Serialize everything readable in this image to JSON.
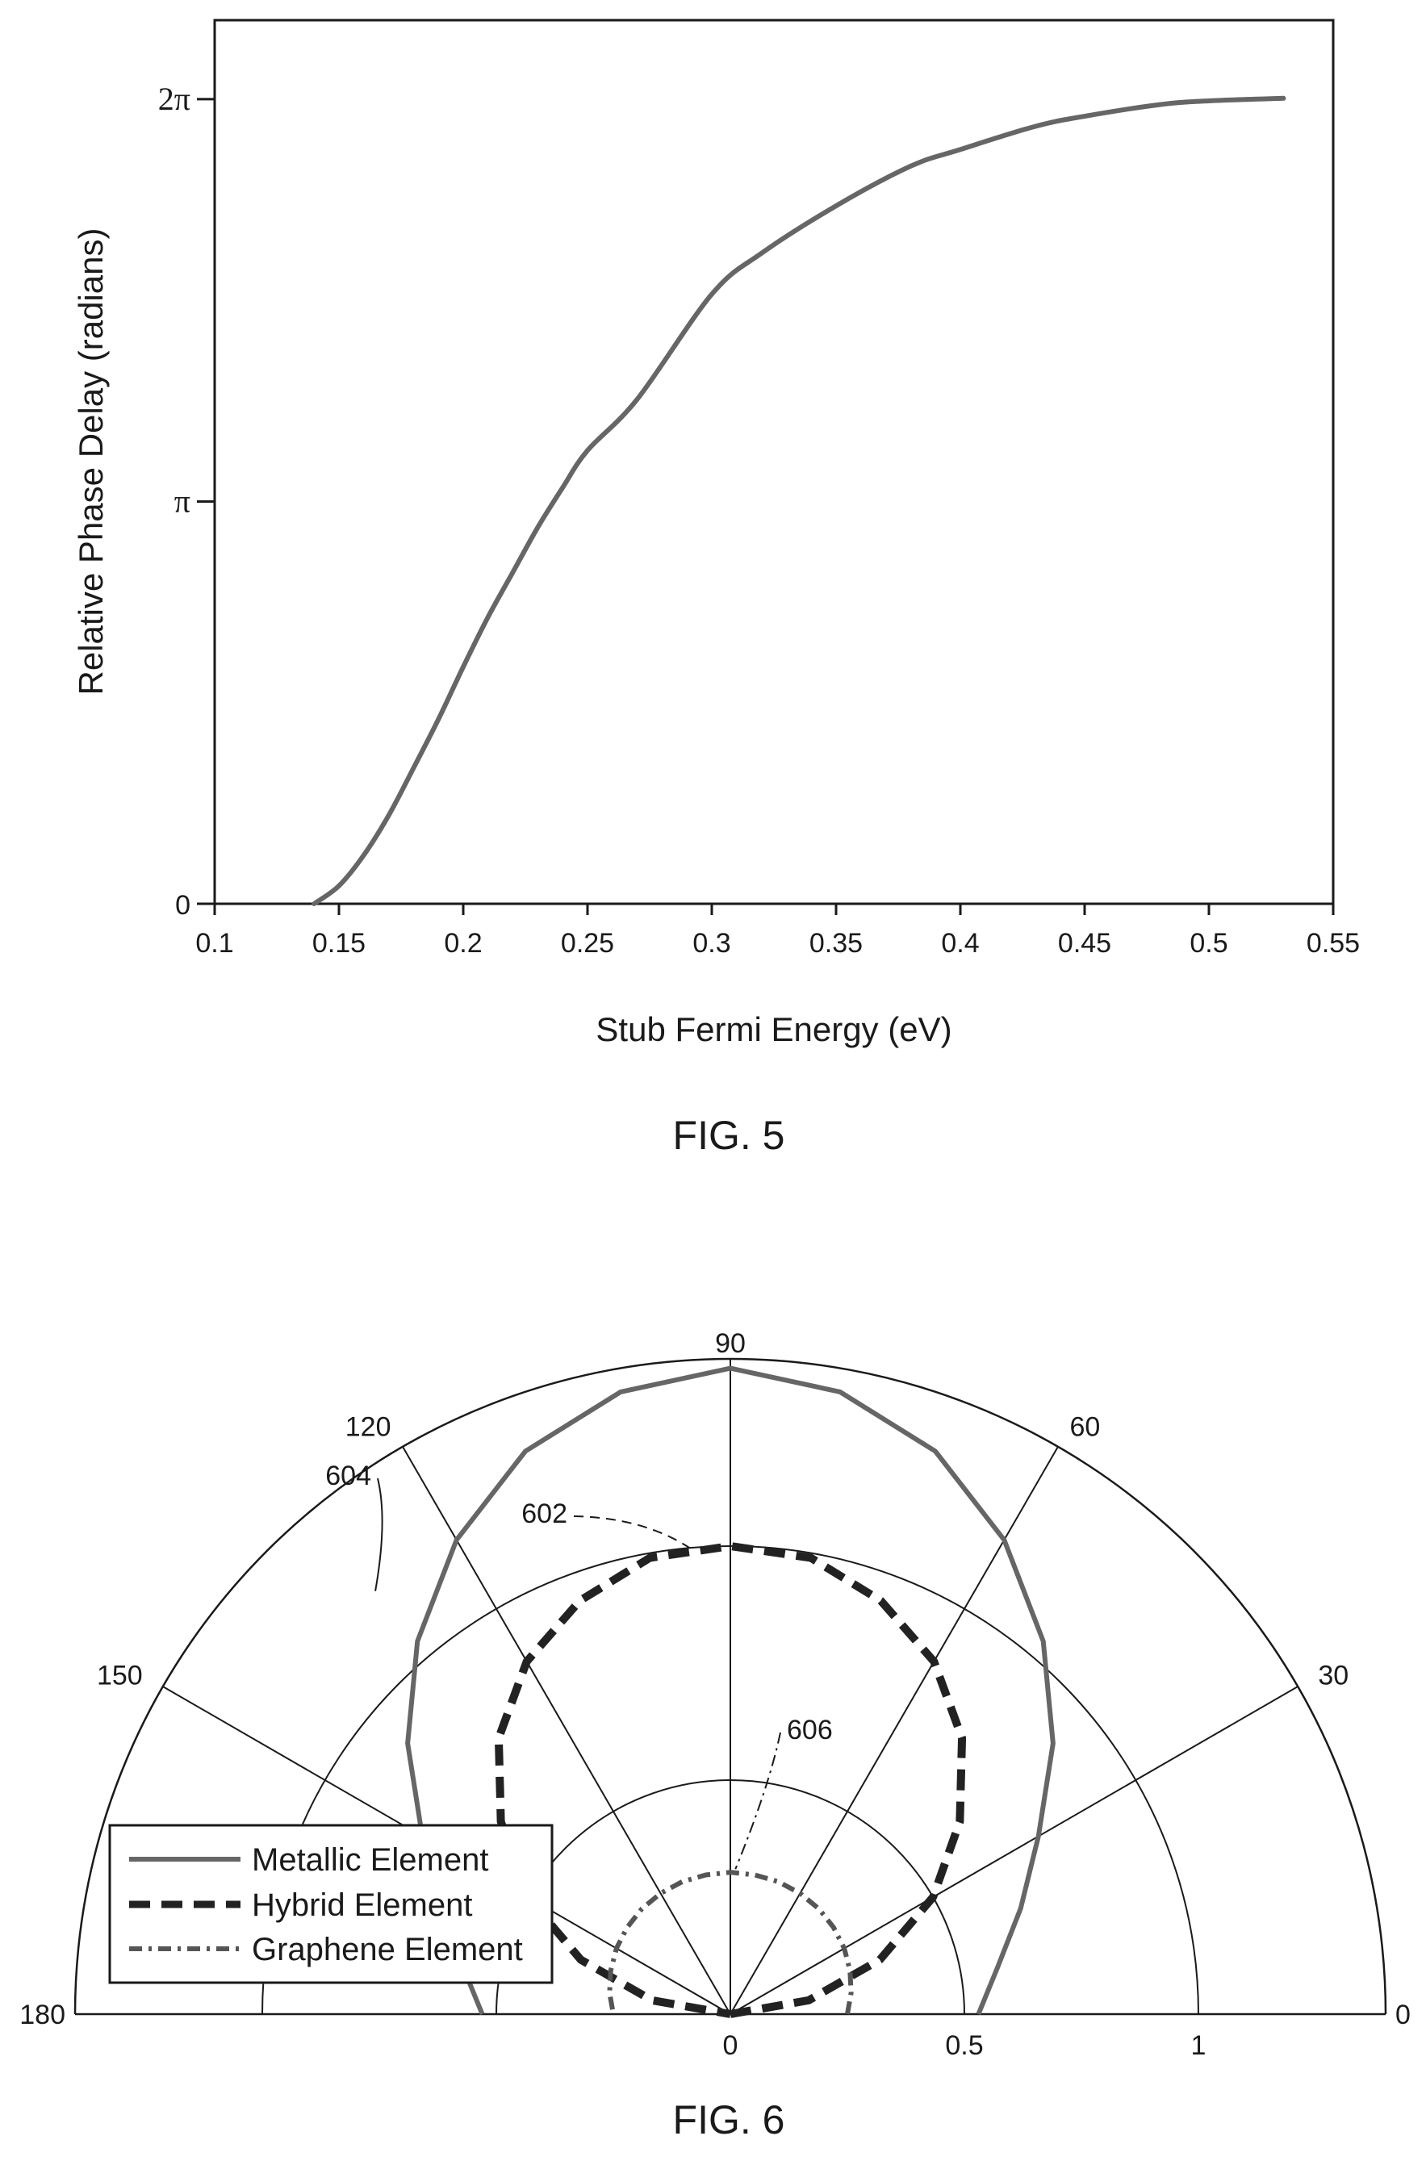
{
  "chart_data": [
    {
      "type": "line",
      "xlabel": "Stub Fermi Energy (eV)",
      "ylabel": "Relative Phase Delay (radians)",
      "caption": "FIG. 5",
      "xlim": [
        0.1,
        0.55
      ],
      "ylim": [
        0,
        6.9
      ],
      "x_ticks": [
        "0.1",
        "0.15",
        "0.2",
        "0.25",
        "0.3",
        "0.35",
        "0.4",
        "0.45",
        "0.5",
        "0.55"
      ],
      "y_ticks": [
        {
          "label": "0",
          "value": 0
        },
        {
          "label": "π",
          "value": 3.1416
        },
        {
          "label": "2π",
          "value": 6.2832
        }
      ],
      "grid": false,
      "series": [
        {
          "color": "#666666",
          "x": [
            0.14,
            0.15,
            0.16,
            0.17,
            0.18,
            0.19,
            0.2,
            0.21,
            0.22,
            0.23,
            0.24,
            0.25,
            0.27,
            0.3,
            0.32,
            0.35,
            0.38,
            0.4,
            0.43,
            0.45,
            0.48,
            0.5,
            0.53
          ],
          "y": [
            0,
            0.14,
            0.38,
            0.69,
            1.06,
            1.44,
            1.85,
            2.24,
            2.59,
            2.94,
            3.25,
            3.54,
            3.94,
            4.76,
            5.08,
            5.45,
            5.76,
            5.89,
            6.07,
            6.15,
            6.24,
            6.27,
            6.29
          ]
        }
      ]
    },
    {
      "type": "polar",
      "caption": "FIG. 6",
      "theta_range": [
        0,
        180
      ],
      "r_max": 1.4,
      "angle_ticks": [
        "0",
        "30",
        "60",
        "90",
        "120",
        "150",
        "180"
      ],
      "radial_ticks": [
        "0",
        "0.5",
        "1"
      ],
      "legend": {
        "position": "bottom-left"
      },
      "series": [
        {
          "name": "Metallic Element",
          "ref": "604",
          "color": "#666666",
          "style": "solid",
          "theta": [
            0,
            10,
            20,
            30,
            40,
            50,
            60,
            70,
            80,
            90,
            100,
            110,
            120,
            130,
            140,
            150,
            160,
            170,
            180
          ],
          "r": [
            0.53,
            0.58,
            0.66,
            0.76,
            0.9,
            1.04,
            1.17,
            1.28,
            1.35,
            1.38,
            1.35,
            1.28,
            1.17,
            1.04,
            0.9,
            0.76,
            0.66,
            0.58,
            0.53
          ]
        },
        {
          "name": "Hybrid Element",
          "ref": "602",
          "color": "#222222",
          "style": "dashed",
          "theta": [
            0,
            10,
            20,
            30,
            40,
            50,
            60,
            70,
            80,
            90,
            100,
            110,
            120,
            130,
            140,
            150,
            160,
            170,
            180
          ],
          "r": [
            0.0,
            0.17,
            0.34,
            0.5,
            0.64,
            0.77,
            0.87,
            0.94,
            0.99,
            1.0,
            0.99,
            0.94,
            0.87,
            0.77,
            0.64,
            0.5,
            0.34,
            0.17,
            0.0
          ]
        },
        {
          "name": "Graphene Element",
          "ref": "606",
          "color": "#555555",
          "style": "dash-dot",
          "theta": [
            0,
            10,
            20,
            30,
            40,
            50,
            60,
            70,
            80,
            90,
            100,
            110,
            120,
            130,
            140,
            150,
            160,
            170,
            180
          ],
          "r": [
            0.25,
            0.262,
            0.272,
            0.281,
            0.288,
            0.294,
            0.298,
            0.301,
            0.302,
            0.303,
            0.302,
            0.301,
            0.298,
            0.294,
            0.288,
            0.281,
            0.272,
            0.262,
            0.25
          ]
        }
      ]
    }
  ]
}
